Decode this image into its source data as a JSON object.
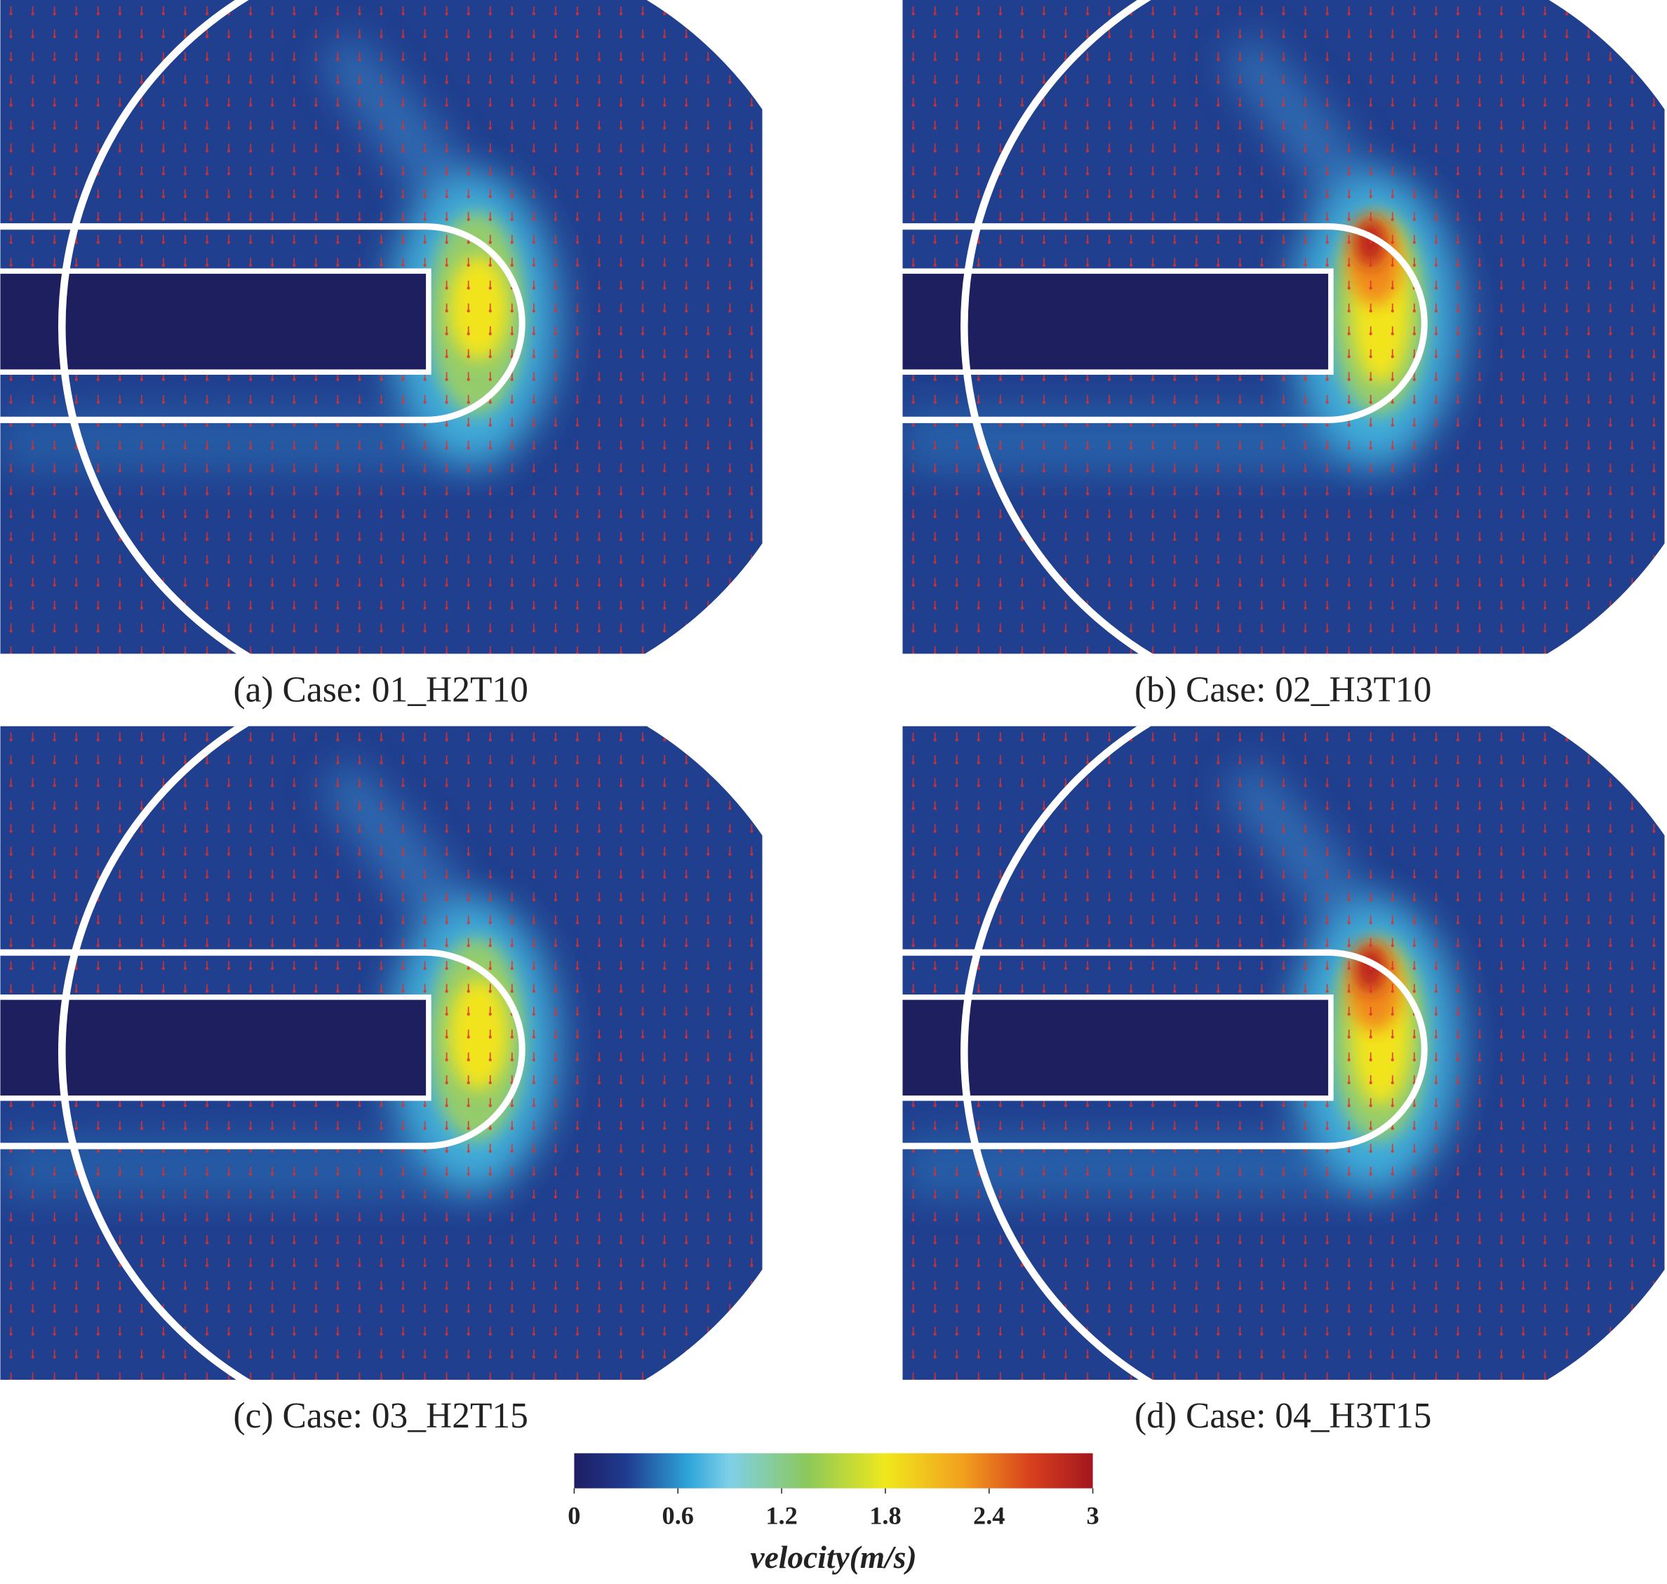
{
  "panels": [
    {
      "caption": "(a)  Case:  01_H2T10"
    },
    {
      "caption": "(b)  Case:  02_H3T10"
    },
    {
      "caption": "(c)  Case:  03_H2T15"
    },
    {
      "caption": "(d)  Case:  04_H3T15"
    }
  ],
  "colorbar": {
    "title": "velocity(m/s)",
    "range": [
      0,
      3
    ],
    "ticks": [
      0,
      0.6,
      1.2,
      1.8,
      2.4,
      3
    ]
  }
}
